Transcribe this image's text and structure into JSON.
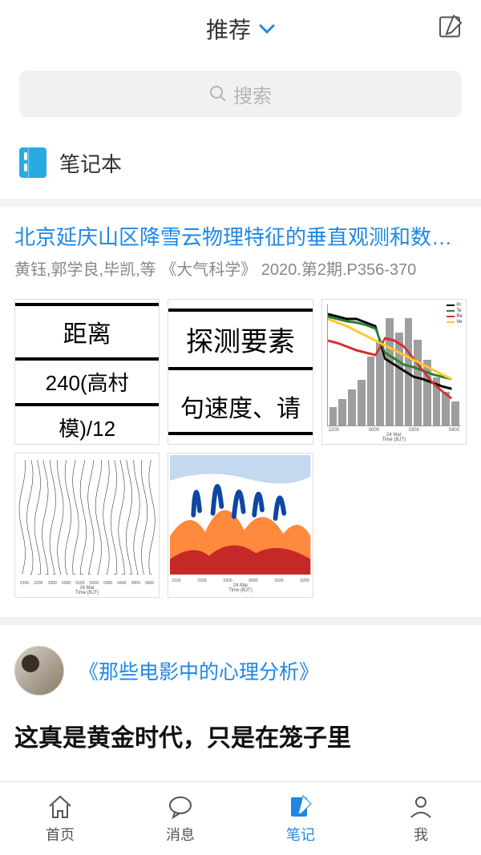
{
  "header": {
    "title": "推荐"
  },
  "search": {
    "placeholder": "搜索"
  },
  "notebook": {
    "title": "笔记本"
  },
  "article1": {
    "title": "北京延庆山区降雪云物理特征的垂直观测和数值模拟...",
    "meta": "黄钰,郭学良,毕凯,等   《大气科学》 2020.第2期.P356-370",
    "thumb1": {
      "line1": "距离",
      "line2": "240(高村",
      "line3": "模)/12"
    },
    "thumb2": {
      "line1": "探测要素",
      "line2": "句速度、请"
    },
    "thumb3": {
      "type": "bar+line",
      "bars": [
        20,
        28,
        40,
        55,
        72,
        90,
        78,
        90,
        70,
        58,
        38,
        30,
        22,
        15
      ],
      "bar_color": "#9e9e9e",
      "lines": [
        {
          "color": "#000000",
          "label": "Pr",
          "points": [
            92,
            90,
            88,
            88,
            85,
            82,
            55,
            50,
            45,
            40,
            38,
            35,
            32,
            30
          ]
        },
        {
          "color": "#2e7d32",
          "label": "Te",
          "points": [
            90,
            88,
            86,
            85,
            83,
            80,
            60,
            55,
            50,
            48,
            45,
            42,
            40,
            38
          ]
        },
        {
          "color": "#d32f2f",
          "label": "Re",
          "points": [
            70,
            68,
            65,
            62,
            60,
            58,
            72,
            70,
            65,
            55,
            45,
            35,
            28,
            22
          ]
        },
        {
          "color": "#ffca28",
          "label": "Ve",
          "points": [
            88,
            85,
            82,
            78,
            74,
            70,
            66,
            62,
            58,
            54,
            50,
            46,
            42,
            38
          ]
        }
      ],
      "xticks": [
        "2200",
        "0000",
        "0200",
        "0400"
      ],
      "xdate": "24 Mar",
      "xlabel": "Time (BJT)"
    },
    "thumb4": {
      "xticks": [
        "2100",
        "2200",
        "2300",
        "0000",
        "0100",
        "0200",
        "0300",
        "0400",
        "0500",
        "0600"
      ],
      "xdate": "24 Mar",
      "xlabel": "Time (BJT)"
    },
    "thumb5": {
      "colors": {
        "top": "#1565c0",
        "flame": "#0d47a1",
        "mid": "#ff8a3d",
        "ground": "#c62828",
        "bg": "#ffffff"
      },
      "xticks": [
        "2100",
        "2200",
        "2300",
        "0000",
        "0100",
        "0200"
      ],
      "xdate": "24 Mar",
      "xlabel": "Time (BJT)"
    }
  },
  "article2": {
    "source": "《那些电影中的心理分析》",
    "headline": "这真是黄金时代，只是在笼子里"
  },
  "tabs": {
    "home": "首页",
    "messages": "消息",
    "notes": "笔记",
    "me": "我"
  },
  "colors": {
    "accent": "#1e88e5",
    "muted": "#888888",
    "border": "#e0e0e0",
    "bg_muted": "#f2f2f2"
  }
}
